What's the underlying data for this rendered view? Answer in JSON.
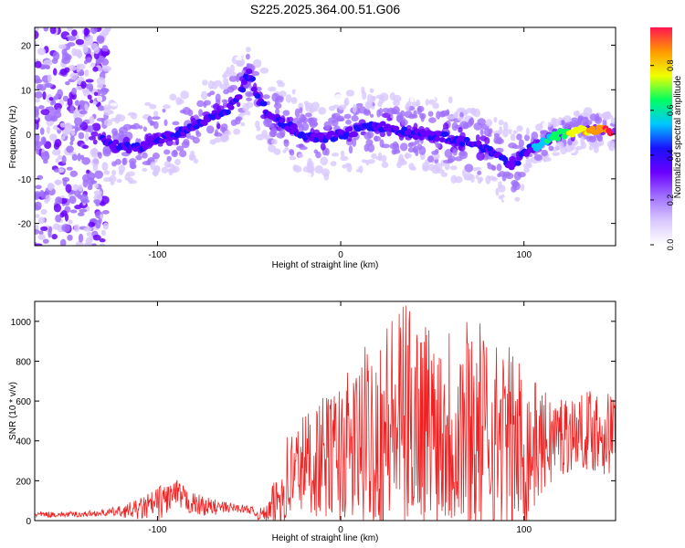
{
  "title": "S225.2025.364.00.51.G06",
  "chart_data": [
    {
      "type": "heatmap",
      "panel": "top",
      "xlabel": "Height of straight line (km)",
      "ylabel": "Frequency (Hz)",
      "xlim": [
        -167,
        150
      ],
      "ylim": [
        -25,
        24
      ],
      "xticks": [
        -100,
        0,
        100
      ],
      "yticks": [
        20,
        10,
        0,
        -10,
        -20
      ],
      "colorbar": {
        "label": "Normalized spectral amplitude",
        "range": [
          0,
          0.97
        ],
        "ticks": [
          "0.0",
          "0.2",
          "0.4",
          "0.6",
          "0.8"
        ],
        "colormap": [
          "#ffffff",
          "#d9c8ff",
          "#a070ff",
          "#6a00ff",
          "#1a10ff",
          "#00c8ff",
          "#00ff60",
          "#f0ff00",
          "#ff9900",
          "#ff1450"
        ]
      },
      "ridge": {
        "name": "",
        "x": [
          -130,
          -120,
          -110,
          -100,
          -90,
          -80,
          -70,
          -60,
          -55,
          -50,
          -45,
          -40,
          -30,
          -20,
          -10,
          0,
          10,
          20,
          30,
          40,
          50,
          60,
          70,
          80,
          90,
          95,
          100,
          110,
          120,
          130,
          140,
          148
        ],
        "y": [
          -1,
          -3,
          -3,
          -1,
          0,
          2,
          4,
          6,
          9,
          14,
          8,
          5,
          2,
          0,
          -1,
          0,
          1,
          2,
          1,
          0,
          0,
          -1,
          -2,
          -3,
          -6,
          -7,
          -4,
          -2,
          0,
          1,
          1,
          0.5
        ]
      }
    },
    {
      "type": "line",
      "panel": "bottom",
      "xlabel": "Height of straight line (km)",
      "ylabel": "SNR (10 * v/v)",
      "xlim": [
        -167,
        150
      ],
      "ylim": [
        0,
        1100
      ],
      "xticks": [
        -100,
        0,
        100
      ],
      "yticks": [
        0,
        200,
        400,
        600,
        800,
        1000
      ],
      "series": [
        {
          "name": "",
          "color": "#ee2222",
          "x": [
            -167,
            -150,
            -140,
            -130,
            -120,
            -110,
            -100,
            -95,
            -90,
            -85,
            -80,
            -70,
            -60,
            -50,
            -45,
            -40,
            -35,
            -30,
            -25,
            -20,
            -10,
            0,
            10,
            20,
            30,
            40,
            50,
            60,
            70,
            80,
            90,
            100,
            110,
            120,
            130,
            140,
            150
          ],
          "y": [
            30,
            30,
            32,
            38,
            45,
            55,
            80,
            110,
            130,
            100,
            80,
            65,
            65,
            55,
            30,
            35,
            90,
            180,
            240,
            280,
            300,
            330,
            360,
            420,
            470,
            500,
            480,
            460,
            440,
            420,
            380,
            340,
            380,
            420,
            440,
            450,
            420
          ],
          "envelope_max": [
            45,
            45,
            48,
            55,
            75,
            110,
            170,
            200,
            210,
            170,
            140,
            110,
            90,
            75,
            60,
            80,
            250,
            450,
            500,
            560,
            620,
            700,
            820,
            1000,
            1080,
            1100,
            1000,
            1050,
            1080,
            950,
            900,
            800,
            650,
            650,
            620,
            700,
            650
          ]
        }
      ]
    }
  ]
}
